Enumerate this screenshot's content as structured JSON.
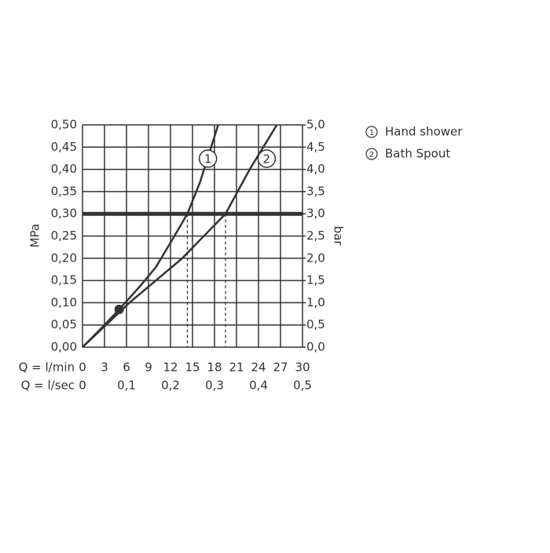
{
  "chart_data": {
    "type": "line",
    "xlabel": "Q = l/min",
    "x2label": "Q = l/sec",
    "ylabel": "MPa",
    "y2label": "bar",
    "xlim": [
      0,
      30
    ],
    "xticks": [
      0,
      3,
      6,
      9,
      12,
      15,
      18,
      21,
      24,
      27,
      30
    ],
    "x2lim": [
      0,
      0.5
    ],
    "x2ticks": [
      {
        "value": 0,
        "label": "0"
      },
      {
        "value": 0.1,
        "label": "0,1"
      },
      {
        "value": 0.2,
        "label": "0,2"
      },
      {
        "value": 0.3,
        "label": "0,3"
      },
      {
        "value": 0.4,
        "label": "0,4"
      },
      {
        "value": 0.5,
        "label": "0,5"
      }
    ],
    "ylim": [
      0,
      0.5
    ],
    "yticks": [
      {
        "value": 0,
        "label": "0,00"
      },
      {
        "value": 0.05,
        "label": "0,05"
      },
      {
        "value": 0.1,
        "label": "0,10"
      },
      {
        "value": 0.15,
        "label": "0,15"
      },
      {
        "value": 0.2,
        "label": "0,20"
      },
      {
        "value": 0.25,
        "label": "0,25"
      },
      {
        "value": 0.3,
        "label": "0,30"
      },
      {
        "value": 0.35,
        "label": "0,35"
      },
      {
        "value": 0.4,
        "label": "0,40"
      },
      {
        "value": 0.45,
        "label": "0,45"
      },
      {
        "value": 0.5,
        "label": "0,50"
      }
    ],
    "y2lim": [
      0,
      5
    ],
    "y2ticks": [
      {
        "value": 0,
        "label": "0,0"
      },
      {
        "value": 0.5,
        "label": "0,5"
      },
      {
        "value": 1,
        "label": "1,0"
      },
      {
        "value": 1.5,
        "label": "1,5"
      },
      {
        "value": 2,
        "label": "2,0"
      },
      {
        "value": 2.5,
        "label": "2,5"
      },
      {
        "value": 3,
        "label": "3,0"
      },
      {
        "value": 3.5,
        "label": "3,5"
      },
      {
        "value": 4,
        "label": "4,0"
      },
      {
        "value": 4.5,
        "label": "4,5"
      },
      {
        "value": 5,
        "label": "5,0"
      }
    ],
    "grid": true,
    "reference_y": 0.3,
    "color": "#333333",
    "series": [
      {
        "name": "Hand shower",
        "label": "1",
        "x": [
          0,
          3,
          5,
          8,
          10,
          12,
          14.3,
          16,
          18.5
        ],
        "values": [
          0,
          0.05,
          0.085,
          0.14,
          0.18,
          0.235,
          0.3,
          0.37,
          0.5
        ]
      },
      {
        "name": "Bath Spout",
        "label": "2",
        "x": [
          0,
          6.4,
          13.6,
          19.5,
          22.8,
          26.5
        ],
        "values": [
          0,
          0.1,
          0.2,
          0.3,
          0.4,
          0.5
        ]
      }
    ],
    "marker": {
      "x": 5,
      "y": 0.085
    }
  }
}
